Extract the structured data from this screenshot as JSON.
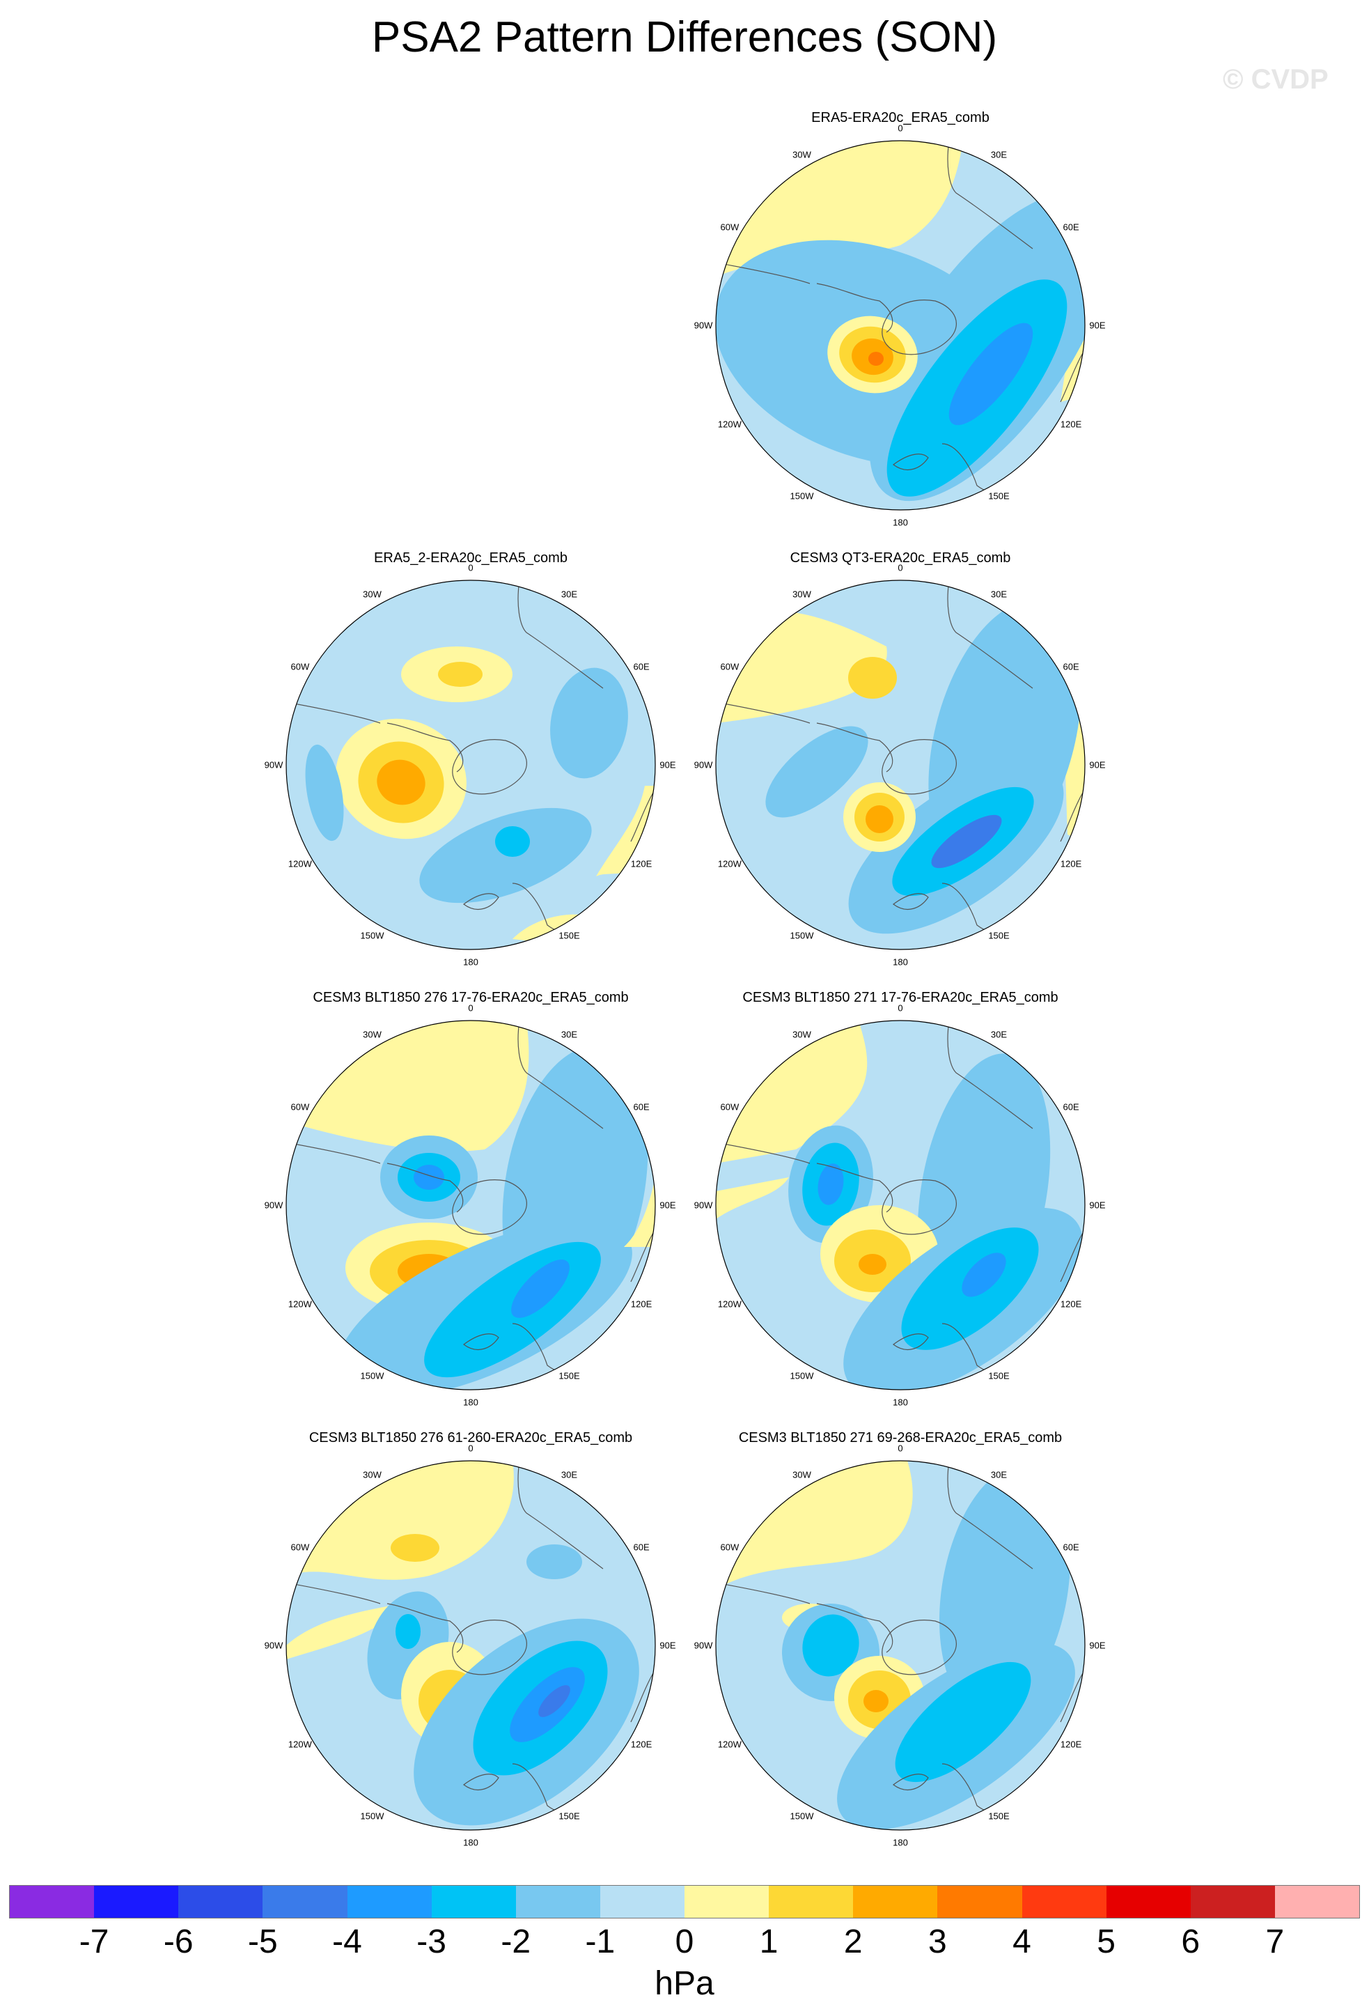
{
  "title": "PSA2 Pattern Differences (SON)",
  "watermark": "© CVDP",
  "longitude_labels": [
    "0",
    "30E",
    "60E",
    "90E",
    "120E",
    "150E",
    "180",
    "150W",
    "120W",
    "90W",
    "60W",
    "30W"
  ],
  "panels": [
    {
      "title": "ERA5-ERA20c_ERA5_comb",
      "variant": "a"
    },
    {
      "title": "ERA5_2-ERA20c_ERA5_comb",
      "variant": "b"
    },
    {
      "title": "CESM3 QT3-ERA20c_ERA5_comb",
      "variant": "c"
    },
    {
      "title": "CESM3 BLT1850 276 17-76-ERA20c_ERA5_comb",
      "variant": "d"
    },
    {
      "title": "CESM3 BLT1850 271 17-76-ERA20c_ERA5_comb",
      "variant": "e"
    },
    {
      "title": "CESM3 BLT1850 276 61-260-ERA20c_ERA5_comb",
      "variant": "f"
    },
    {
      "title": "CESM3 BLT1850 271 69-268-ERA20c_ERA5_comb",
      "variant": "g"
    }
  ],
  "colorbar": {
    "colors": [
      "#8a2be2",
      "#1a1aff",
      "#2c4de8",
      "#3a7bea",
      "#1e9bff",
      "#00c3f5",
      "#78c8f0",
      "#b8e0f4",
      "#fff8a0",
      "#fdd835",
      "#ffaa00",
      "#ff7a00",
      "#ff3a10",
      "#e60000",
      "#cc2020",
      "#ffb0b0"
    ],
    "labels": [
      "-7",
      "-6",
      "-5",
      "-4",
      "-3",
      "-2",
      "-1",
      "0",
      "1",
      "2",
      "3",
      "4",
      "5",
      "6",
      "7"
    ],
    "units": "hPa"
  },
  "palette": {
    "bg": "#b8e0f4",
    "pos1": "#fff8a0",
    "pos2": "#fdd835",
    "pos3": "#ffaa00",
    "pos4": "#ff7a00",
    "neg2": "#78c8f0",
    "neg3": "#00c3f5",
    "neg4": "#1e9bff",
    "neg5": "#3a7bea"
  }
}
